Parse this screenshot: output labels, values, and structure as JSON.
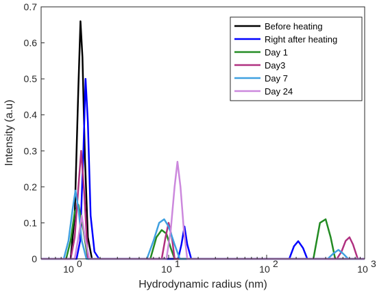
{
  "chart_data": {
    "type": "line",
    "xlabel": "Hydrodynamic radius (nm)",
    "ylabel": "Intensity (a.u)",
    "xscale": "log",
    "xlim": [
      0.5,
      1000
    ],
    "ylim": [
      0,
      0.7
    ],
    "xticks": [
      1,
      10,
      100,
      1000
    ],
    "xtick_labels": [
      {
        "base": "10",
        "exp": "0"
      },
      {
        "base": "10",
        "exp": "1"
      },
      {
        "base": "10",
        "exp": "2"
      },
      {
        "base": "10",
        "exp": "3"
      }
    ],
    "yticks": [
      0,
      0.1,
      0.2,
      0.3,
      0.4,
      0.5,
      0.6,
      0.7
    ],
    "ytick_labels": [
      "0",
      "0.1",
      "0.2",
      "0.3",
      "0.4",
      "0.5",
      "0.6",
      "0.7"
    ],
    "grid": false,
    "legend_position": "top-right",
    "series": [
      {
        "name": "Before heating",
        "color": "#000000",
        "x": [
          0.5,
          1.0,
          1.1,
          1.2,
          1.26,
          1.32,
          1.4,
          1.5,
          1.65,
          2.0,
          1000
        ],
        "y": [
          0,
          0,
          0.12,
          0.48,
          0.66,
          0.56,
          0.28,
          0.06,
          0,
          0,
          0
        ]
      },
      {
        "name": "Right after heating",
        "color": "#0000ff",
        "x": [
          0.5,
          1.15,
          1.25,
          1.35,
          1.42,
          1.5,
          1.6,
          1.75,
          1.95,
          12.5,
          13.5,
          14.5,
          15.5,
          17,
          170,
          190,
          210,
          235,
          260,
          1000
        ],
        "y": [
          0,
          0,
          0.05,
          0.3,
          0.5,
          0.38,
          0.12,
          0.02,
          0,
          0,
          0.04,
          0.09,
          0.04,
          0,
          0,
          0.035,
          0.049,
          0.03,
          0,
          0
        ]
      },
      {
        "name": "Day 1",
        "color": "#228b22",
        "x": [
          0.5,
          0.9,
          1.0,
          1.1,
          1.2,
          1.35,
          1.5,
          6.5,
          7.5,
          8.5,
          9.5,
          10.5,
          11.5,
          300,
          350,
          400,
          450,
          500,
          1000
        ],
        "y": [
          0,
          0,
          0.05,
          0.13,
          0.15,
          0.08,
          0,
          0,
          0.06,
          0.08,
          0.07,
          0.03,
          0,
          0,
          0.1,
          0.11,
          0.06,
          0,
          0
        ]
      },
      {
        "name": "Day3",
        "color": "#b03080",
        "x": [
          0.5,
          1.0,
          1.1,
          1.2,
          1.28,
          1.38,
          1.5,
          8.5,
          9.3,
          10.0,
          10.8,
          11.5,
          520,
          580,
          640,
          700,
          760,
          850,
          1000
        ],
        "y": [
          0,
          0,
          0.06,
          0.2,
          0.3,
          0.18,
          0,
          0,
          0.06,
          0.1,
          0.06,
          0,
          0,
          0.02,
          0.05,
          0.06,
          0.04,
          0,
          0
        ]
      },
      {
        "name": "Day 7",
        "color": "#3fa0e0",
        "x": [
          0.5,
          0.85,
          0.95,
          1.05,
          1.12,
          1.2,
          1.3,
          1.45,
          6.0,
          7.0,
          8.0,
          9.0,
          10.0,
          11.5,
          13.0,
          420,
          480,
          540,
          600,
          680,
          1000
        ],
        "y": [
          0,
          0,
          0.05,
          0.14,
          0.19,
          0.14,
          0.05,
          0,
          0,
          0.05,
          0.1,
          0.11,
          0.09,
          0.04,
          0,
          0,
          0.015,
          0.025,
          0.015,
          0,
          0
        ]
      },
      {
        "name": "Day 24",
        "color": "#cc88dd",
        "x": [
          0.5,
          1.1,
          1.2,
          1.3,
          1.4,
          1.55,
          9.5,
          10.5,
          11.5,
          12.3,
          13.2,
          14.3,
          15.5,
          1000
        ],
        "y": [
          0,
          0,
          0.06,
          0.12,
          0.06,
          0,
          0,
          0.08,
          0.2,
          0.27,
          0.2,
          0.08,
          0,
          0
        ]
      }
    ]
  }
}
